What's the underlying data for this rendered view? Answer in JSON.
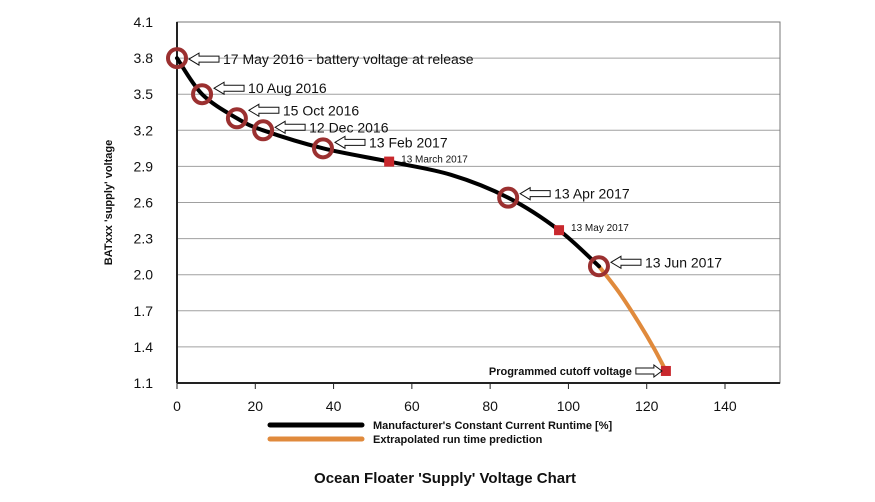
{
  "chart_data": {
    "type": "line",
    "title": "Ocean Floater 'Supply' Voltage Chart",
    "xlabel": "Manufacturer's Constant Current Runtime  [%]",
    "ylabel": "BATxxx    'supply'    voltage",
    "xlim": [
      0,
      140
    ],
    "ylim": [
      1.1,
      4.1
    ],
    "xticks": [
      0,
      20,
      40,
      60,
      80,
      100,
      120,
      140
    ],
    "yticks": [
      "1.1",
      "1.4",
      "1.7",
      "2.0",
      "2.3",
      "2.6",
      "2.9",
      "3.2",
      "3.5",
      "3.8",
      "4.1"
    ],
    "grid": "horizontal",
    "legend_placement": "bottom",
    "series": [
      {
        "name": "Manufacturer's Constant Current Runtime  [%]",
        "color": "#000000",
        "x": [
          0,
          6.4,
          15.3,
          22,
          37.3,
          54.2,
          70,
          84.6,
          97.6,
          107.8
        ],
        "y": [
          3.8,
          3.5,
          3.3,
          3.2,
          3.05,
          2.94,
          2.83,
          2.64,
          2.37,
          2.07
        ]
      },
      {
        "name": "Extrapolated run time prediction",
        "color": "#e08a3c",
        "x": [
          107.8,
          113,
          118,
          122,
          124.9
        ],
        "y": [
          2.07,
          1.85,
          1.6,
          1.38,
          1.2
        ]
      }
    ],
    "markers": [
      {
        "shape": "circle",
        "x": 0,
        "y": 3.8,
        "label": "17 May 2016 - battery voltage at release"
      },
      {
        "shape": "circle",
        "x": 6.4,
        "y": 3.5,
        "label": "10 Aug 2016"
      },
      {
        "shape": "circle",
        "x": 15.3,
        "y": 3.3,
        "label": "15 Oct 2016"
      },
      {
        "shape": "circle",
        "x": 22,
        "y": 3.2,
        "label": "12 Dec 2016"
      },
      {
        "shape": "circle",
        "x": 37.3,
        "y": 3.05,
        "label": "13 Feb 2017"
      },
      {
        "shape": "square",
        "x": 54.2,
        "y": 2.94,
        "label": "13 March 2017"
      },
      {
        "shape": "circle",
        "x": 84.6,
        "y": 2.64,
        "label": "13 Apr 2017"
      },
      {
        "shape": "square",
        "x": 97.6,
        "y": 2.37,
        "label": "13 May 2017"
      },
      {
        "shape": "circle",
        "x": 107.8,
        "y": 2.07,
        "label": "13 Jun 2017"
      },
      {
        "shape": "square",
        "x": 124.9,
        "y": 1.2,
        "label": "Programmed cutoff voltage"
      }
    ],
    "colors": {
      "circle": "#9b3030",
      "square": "#c8282d",
      "grid": "#a0a0a0"
    }
  }
}
